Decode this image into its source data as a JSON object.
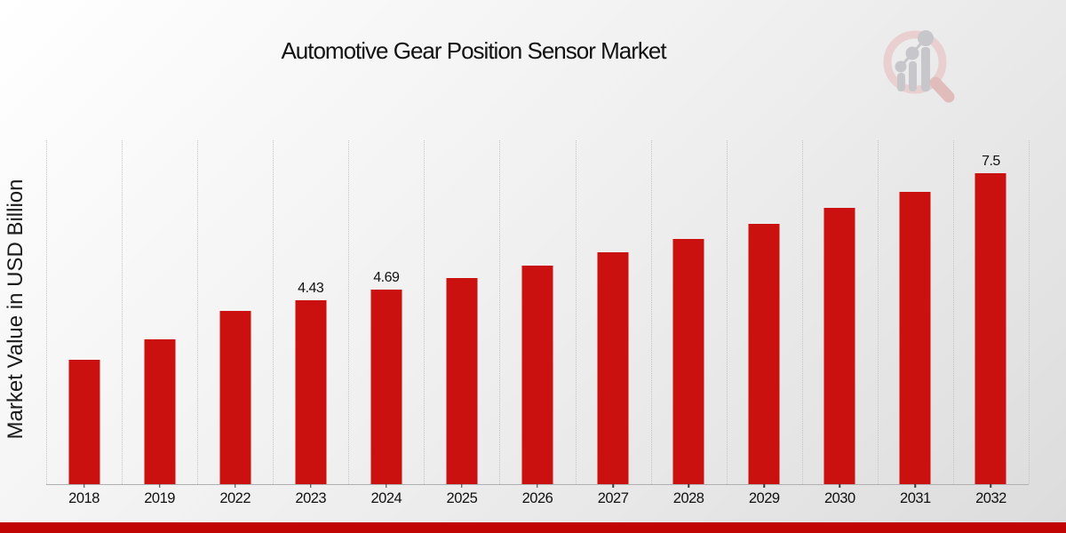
{
  "header": {
    "title": "Automotive Gear Position Sensor Market"
  },
  "chart_data": {
    "type": "bar",
    "title": "Automotive Gear Position Sensor Market",
    "xlabel": "",
    "ylabel": "Market Value in USD Billion",
    "categories": [
      "2018",
      "2019",
      "2022",
      "2023",
      "2024",
      "2025",
      "2026",
      "2027",
      "2028",
      "2029",
      "2030",
      "2031",
      "2032"
    ],
    "values": [
      3.0,
      3.5,
      4.18,
      4.43,
      4.69,
      4.97,
      5.27,
      5.59,
      5.92,
      6.28,
      6.66,
      7.06,
      7.5
    ],
    "bar_labels": [
      "",
      "",
      "",
      "4.43",
      "4.69",
      "",
      "",
      "",
      "",
      "",
      "",
      "",
      "7.5"
    ],
    "ylim": [
      0,
      8.3
    ],
    "grid": "vertical-dotted",
    "legend": "none",
    "bar_color": "#cb1010"
  },
  "colors": {
    "bar": "#cb1010",
    "footer_band": "#c10505",
    "grid": "#c5c5c5",
    "axis_line": "#b0b0b0",
    "tick": "#3a3a3a",
    "text": "#141414",
    "background_from": "#ffffff",
    "background_to": "#dcdcdc",
    "logo_ring": "#e9cfcf",
    "logo_handle": "#e0bdbb",
    "logo_gray": "#c7c7cb"
  },
  "branding": {
    "logo": "magnifier-bar-chart-watermark"
  }
}
